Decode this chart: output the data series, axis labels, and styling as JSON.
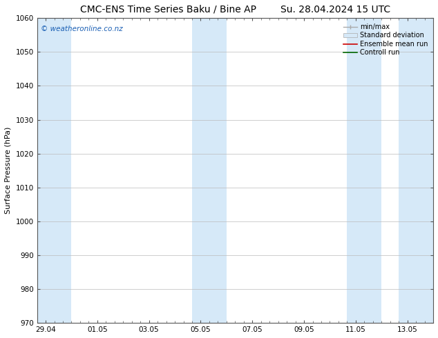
{
  "title_left": "CMC-ENS Time Series Baku / Bine AP",
  "title_right": "Su. 28.04.2024 15 UTC",
  "ylabel": "Surface Pressure (hPa)",
  "ylim": [
    970,
    1060
  ],
  "yticks": [
    970,
    980,
    990,
    1000,
    1010,
    1020,
    1030,
    1040,
    1050,
    1060
  ],
  "x_tick_labels": [
    "29.04",
    "01.05",
    "03.05",
    "05.05",
    "07.05",
    "09.05",
    "11.05",
    "13.05"
  ],
  "x_tick_positions": [
    0.5,
    3.5,
    6.5,
    9.5,
    12.5,
    15.5,
    18.5,
    21.5
  ],
  "x_lim": [
    0,
    23
  ],
  "shaded_bands": [
    {
      "x_start": 0,
      "x_end": 2,
      "color": "#d6e9f8"
    },
    {
      "x_start": 9,
      "x_end": 11,
      "color": "#d6e9f8"
    },
    {
      "x_start": 18,
      "x_end": 20,
      "color": "#d6e9f8"
    },
    {
      "x_start": 21,
      "x_end": 23,
      "color": "#d6e9f8"
    }
  ],
  "watermark": "© weatheronline.co.nz",
  "watermark_color": "#1a5fb4",
  "legend_items": [
    {
      "label": "min/max",
      "color": "#aaaaaa",
      "type": "line_with_caps"
    },
    {
      "label": "Standard deviation",
      "color": "#ccddee",
      "type": "bar"
    },
    {
      "label": "Ensemble mean run",
      "color": "#cc0000",
      "type": "line"
    },
    {
      "label": "Controll run",
      "color": "#006600",
      "type": "line"
    }
  ],
  "bg_color": "#ffffff",
  "grid_color": "#bbbbbb",
  "title_fontsize": 10,
  "axis_fontsize": 8,
  "tick_fontsize": 7.5
}
